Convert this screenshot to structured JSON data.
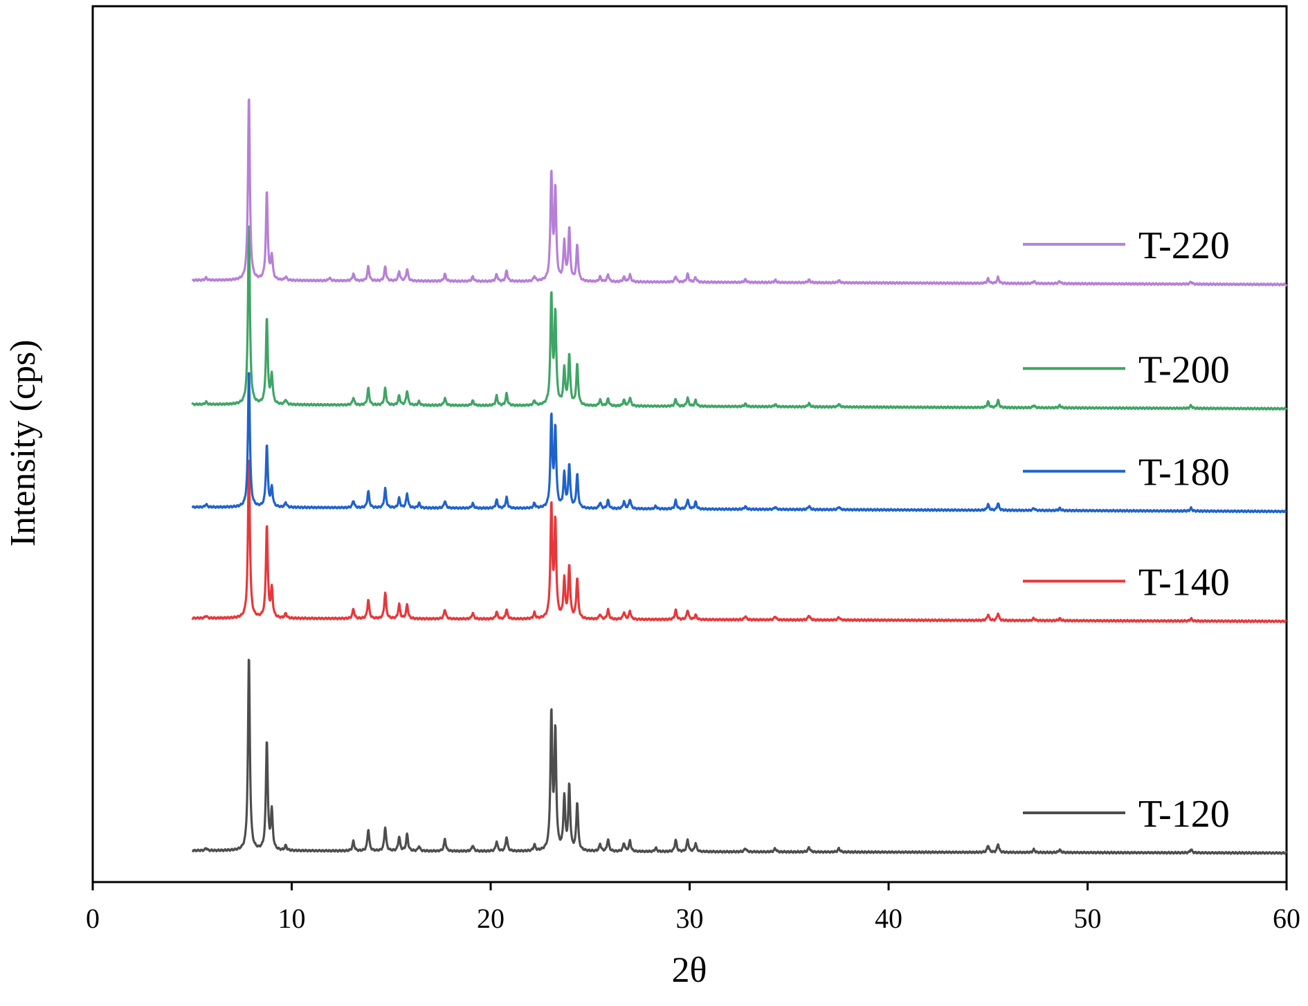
{
  "chart_data": {
    "type": "line",
    "xlabel": "2θ",
    "ylabel": "Intensity (cps)",
    "xlim": [
      0,
      60
    ],
    "xticks": [
      "0",
      "10",
      "20",
      "30",
      "40",
      "50",
      "60"
    ],
    "x_range": [
      5,
      60
    ],
    "y_ticks_shown": false,
    "grid": false,
    "legend": "right, beside each trace",
    "stacked_offset": true,
    "series": [
      {
        "name": "T-120",
        "color": "#4d4d4d",
        "baseline": [
          0.01,
          0.0
        ],
        "offset": 0.0,
        "peaks": [
          [
            5.7,
            0.01
          ],
          [
            7.85,
            0.82
          ],
          [
            8.75,
            0.46
          ],
          [
            9.0,
            0.16
          ],
          [
            9.7,
            0.02
          ],
          [
            13.1,
            0.04
          ],
          [
            13.85,
            0.09
          ],
          [
            14.7,
            0.1
          ],
          [
            15.4,
            0.06
          ],
          [
            15.8,
            0.07
          ],
          [
            16.4,
            0.02
          ],
          [
            17.7,
            0.05
          ],
          [
            19.1,
            0.025
          ],
          [
            20.3,
            0.04
          ],
          [
            20.8,
            0.06
          ],
          [
            22.2,
            0.025
          ],
          [
            23.05,
            0.57
          ],
          [
            23.25,
            0.49
          ],
          [
            23.7,
            0.22
          ],
          [
            23.95,
            0.27
          ],
          [
            24.35,
            0.2
          ],
          [
            25.5,
            0.03
          ],
          [
            25.9,
            0.05
          ],
          [
            26.7,
            0.035
          ],
          [
            27.0,
            0.045
          ],
          [
            28.3,
            0.015
          ],
          [
            29.3,
            0.05
          ],
          [
            29.9,
            0.05
          ],
          [
            30.3,
            0.035
          ],
          [
            32.8,
            0.015
          ],
          [
            34.3,
            0.015
          ],
          [
            36.0,
            0.02
          ],
          [
            37.5,
            0.015
          ],
          [
            45.0,
            0.03
          ],
          [
            45.5,
            0.035
          ],
          [
            47.3,
            0.012
          ],
          [
            48.6,
            0.012
          ],
          [
            55.2,
            0.015
          ]
        ]
      },
      {
        "name": "T-140",
        "color": "#e8373a",
        "baseline": [
          0.013,
          0.0
        ],
        "offset": 0.97,
        "peaks": [
          [
            5.7,
            0.01
          ],
          [
            7.85,
            0.68
          ],
          [
            8.75,
            0.39
          ],
          [
            9.0,
            0.12
          ],
          [
            9.7,
            0.02
          ],
          [
            13.1,
            0.04
          ],
          [
            13.85,
            0.08
          ],
          [
            14.7,
            0.11
          ],
          [
            15.4,
            0.06
          ],
          [
            15.8,
            0.06
          ],
          [
            17.7,
            0.04
          ],
          [
            19.1,
            0.025
          ],
          [
            20.3,
            0.03
          ],
          [
            20.8,
            0.04
          ],
          [
            22.2,
            0.025
          ],
          [
            23.05,
            0.47
          ],
          [
            23.25,
            0.4
          ],
          [
            23.7,
            0.16
          ],
          [
            23.95,
            0.22
          ],
          [
            24.35,
            0.17
          ],
          [
            25.5,
            0.02
          ],
          [
            25.9,
            0.04
          ],
          [
            26.7,
            0.03
          ],
          [
            27.0,
            0.035
          ],
          [
            29.3,
            0.04
          ],
          [
            29.9,
            0.04
          ],
          [
            30.3,
            0.02
          ],
          [
            32.8,
            0.015
          ],
          [
            34.3,
            0.015
          ],
          [
            36.0,
            0.02
          ],
          [
            37.5,
            0.012
          ],
          [
            45.0,
            0.025
          ],
          [
            45.5,
            0.03
          ],
          [
            47.3,
            0.01
          ],
          [
            48.6,
            0.01
          ],
          [
            55.2,
            0.01
          ]
        ]
      },
      {
        "name": "T-180",
        "color": "#1f62cc",
        "baseline": [
          0.018,
          0.0
        ],
        "offset": 1.43,
        "peaks": [
          [
            5.7,
            0.012
          ],
          [
            7.85,
            0.58
          ],
          [
            8.75,
            0.26
          ],
          [
            9.0,
            0.08
          ],
          [
            9.7,
            0.02
          ],
          [
            13.1,
            0.03
          ],
          [
            13.85,
            0.07
          ],
          [
            14.7,
            0.08
          ],
          [
            15.4,
            0.04
          ],
          [
            15.8,
            0.06
          ],
          [
            16.4,
            0.02
          ],
          [
            17.7,
            0.03
          ],
          [
            19.1,
            0.02
          ],
          [
            20.3,
            0.035
          ],
          [
            20.8,
            0.045
          ],
          [
            22.2,
            0.02
          ],
          [
            23.05,
            0.38
          ],
          [
            23.25,
            0.33
          ],
          [
            23.7,
            0.14
          ],
          [
            23.95,
            0.18
          ],
          [
            24.35,
            0.14
          ],
          [
            25.5,
            0.025
          ],
          [
            25.9,
            0.035
          ],
          [
            26.7,
            0.03
          ],
          [
            27.0,
            0.04
          ],
          [
            28.3,
            0.012
          ],
          [
            29.3,
            0.035
          ],
          [
            29.9,
            0.04
          ],
          [
            30.3,
            0.03
          ],
          [
            32.8,
            0.012
          ],
          [
            34.3,
            0.01
          ],
          [
            36.0,
            0.015
          ],
          [
            37.5,
            0.012
          ],
          [
            45.0,
            0.025
          ],
          [
            45.5,
            0.03
          ],
          [
            47.3,
            0.01
          ],
          [
            48.6,
            0.01
          ],
          [
            55.2,
            0.012
          ]
        ]
      },
      {
        "name": "T-200",
        "color": "#3ea565",
        "baseline": [
          0.018,
          0.0
        ],
        "offset": 1.86,
        "peaks": [
          [
            5.7,
            0.01
          ],
          [
            7.85,
            0.77
          ],
          [
            8.75,
            0.36
          ],
          [
            9.0,
            0.12
          ],
          [
            9.7,
            0.02
          ],
          [
            13.1,
            0.03
          ],
          [
            13.85,
            0.07
          ],
          [
            14.7,
            0.07
          ],
          [
            15.4,
            0.04
          ],
          [
            15.8,
            0.06
          ],
          [
            16.4,
            0.015
          ],
          [
            17.7,
            0.03
          ],
          [
            19.1,
            0.02
          ],
          [
            20.3,
            0.04
          ],
          [
            20.8,
            0.05
          ],
          [
            22.2,
            0.02
          ],
          [
            23.05,
            0.46
          ],
          [
            23.25,
            0.38
          ],
          [
            23.7,
            0.15
          ],
          [
            23.95,
            0.21
          ],
          [
            24.35,
            0.17
          ],
          [
            25.5,
            0.025
          ],
          [
            25.9,
            0.03
          ],
          [
            26.7,
            0.025
          ],
          [
            27.0,
            0.035
          ],
          [
            29.3,
            0.03
          ],
          [
            29.9,
            0.035
          ],
          [
            30.3,
            0.025
          ],
          [
            32.8,
            0.012
          ],
          [
            34.3,
            0.01
          ],
          [
            36.0,
            0.015
          ],
          [
            37.5,
            0.012
          ],
          [
            45.0,
            0.025
          ],
          [
            45.5,
            0.03
          ],
          [
            47.3,
            0.01
          ],
          [
            48.6,
            0.01
          ],
          [
            55.2,
            0.012
          ]
        ]
      },
      {
        "name": "T-220",
        "color": "#b77fd8",
        "baseline": [
          0.018,
          0.0
        ],
        "offset": 2.38,
        "peaks": [
          [
            5.7,
            0.01
          ],
          [
            7.85,
            0.78
          ],
          [
            8.75,
            0.37
          ],
          [
            9.0,
            0.1
          ],
          [
            9.7,
            0.015
          ],
          [
            11.9,
            0.012
          ],
          [
            13.1,
            0.03
          ],
          [
            13.85,
            0.06
          ],
          [
            14.7,
            0.06
          ],
          [
            15.4,
            0.04
          ],
          [
            15.8,
            0.05
          ],
          [
            17.7,
            0.03
          ],
          [
            19.1,
            0.02
          ],
          [
            20.3,
            0.03
          ],
          [
            20.8,
            0.045
          ],
          [
            22.2,
            0.02
          ],
          [
            23.05,
            0.45
          ],
          [
            23.25,
            0.38
          ],
          [
            23.7,
            0.16
          ],
          [
            23.95,
            0.22
          ],
          [
            24.35,
            0.15
          ],
          [
            25.5,
            0.02
          ],
          [
            25.9,
            0.03
          ],
          [
            26.7,
            0.02
          ],
          [
            27.0,
            0.03
          ],
          [
            29.3,
            0.025
          ],
          [
            29.9,
            0.035
          ],
          [
            30.3,
            0.02
          ],
          [
            32.8,
            0.012
          ],
          [
            34.3,
            0.01
          ],
          [
            36.0,
            0.012
          ],
          [
            37.5,
            0.01
          ],
          [
            45.0,
            0.02
          ],
          [
            45.5,
            0.025
          ],
          [
            47.3,
            0.01
          ],
          [
            48.6,
            0.01
          ],
          [
            55.2,
            0.01
          ]
        ]
      }
    ]
  }
}
